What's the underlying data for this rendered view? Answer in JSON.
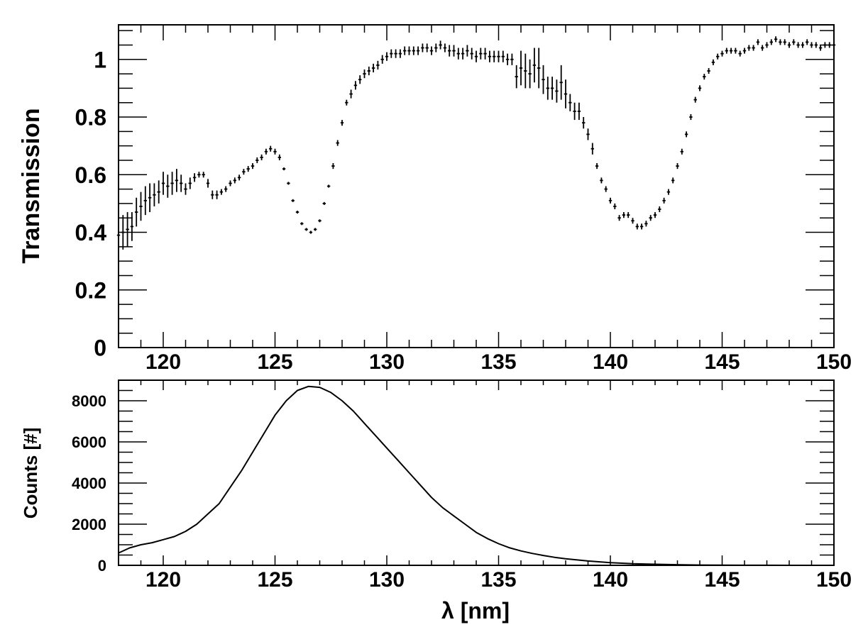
{
  "figure": {
    "xlabel": "λ [nm]",
    "xlim": [
      118,
      150
    ],
    "xticks": [
      120,
      125,
      130,
      135,
      140,
      145,
      150
    ]
  },
  "chart_data": [
    {
      "type": "scatter",
      "panel": "top",
      "xlabel": "",
      "ylabel": "Transmission",
      "xlim": [
        118,
        150
      ],
      "ylim": [
        0,
        1.12
      ],
      "yticks": [
        0,
        0.2,
        0.4,
        0.6,
        0.8,
        1
      ],
      "ytick_labels": [
        "0",
        "0.2",
        "0.4",
        "0.6",
        "0.8",
        "1"
      ],
      "error_bars": true,
      "points": [
        [
          118.0,
          0.39,
          0.07
        ],
        [
          118.2,
          0.4,
          0.06
        ],
        [
          118.4,
          0.41,
          0.06
        ],
        [
          118.6,
          0.42,
          0.05
        ],
        [
          118.8,
          0.47,
          0.05
        ],
        [
          119.0,
          0.49,
          0.05
        ],
        [
          119.2,
          0.51,
          0.05
        ],
        [
          119.4,
          0.52,
          0.05
        ],
        [
          119.6,
          0.53,
          0.04
        ],
        [
          119.8,
          0.54,
          0.04
        ],
        [
          120.0,
          0.57,
          0.04
        ],
        [
          120.2,
          0.56,
          0.04
        ],
        [
          120.4,
          0.57,
          0.04
        ],
        [
          120.6,
          0.58,
          0.04
        ],
        [
          120.8,
          0.57,
          0.03
        ],
        [
          121.0,
          0.55,
          0.02
        ],
        [
          121.2,
          0.57,
          0.02
        ],
        [
          121.4,
          0.59,
          0.015
        ],
        [
          121.6,
          0.6,
          0.01
        ],
        [
          121.8,
          0.6,
          0.01
        ],
        [
          122.0,
          0.57,
          0.015
        ],
        [
          122.2,
          0.53,
          0.015
        ],
        [
          122.4,
          0.53,
          0.015
        ],
        [
          122.6,
          0.54,
          0.01
        ],
        [
          122.8,
          0.55,
          0.01
        ],
        [
          123.0,
          0.57,
          0.01
        ],
        [
          123.2,
          0.58,
          0.01
        ],
        [
          123.4,
          0.59,
          0.01
        ],
        [
          123.6,
          0.61,
          0.01
        ],
        [
          123.8,
          0.62,
          0.01
        ],
        [
          124.0,
          0.63,
          0.01
        ],
        [
          124.2,
          0.65,
          0.01
        ],
        [
          124.4,
          0.66,
          0.01
        ],
        [
          124.6,
          0.68,
          0.01
        ],
        [
          124.8,
          0.69,
          0.01
        ],
        [
          125.0,
          0.68,
          0.01
        ],
        [
          125.2,
          0.66,
          0.01
        ],
        [
          125.4,
          0.62,
          0.005
        ],
        [
          125.6,
          0.57,
          0.005
        ],
        [
          125.8,
          0.51,
          0.005
        ],
        [
          126.0,
          0.47,
          0.005
        ],
        [
          126.2,
          0.43,
          0.005
        ],
        [
          126.4,
          0.41,
          0.005
        ],
        [
          126.6,
          0.4,
          0.005
        ],
        [
          126.8,
          0.41,
          0.005
        ],
        [
          127.0,
          0.44,
          0.005
        ],
        [
          127.2,
          0.5,
          0.005
        ],
        [
          127.4,
          0.56,
          0.005
        ],
        [
          127.6,
          0.63,
          0.01
        ],
        [
          127.8,
          0.71,
          0.01
        ],
        [
          128.0,
          0.78,
          0.01
        ],
        [
          128.2,
          0.85,
          0.01
        ],
        [
          128.4,
          0.88,
          0.015
        ],
        [
          128.6,
          0.91,
          0.015
        ],
        [
          128.8,
          0.93,
          0.015
        ],
        [
          129.0,
          0.95,
          0.015
        ],
        [
          129.2,
          0.96,
          0.015
        ],
        [
          129.4,
          0.97,
          0.015
        ],
        [
          129.6,
          0.98,
          0.015
        ],
        [
          129.8,
          1.0,
          0.015
        ],
        [
          130.0,
          1.01,
          0.015
        ],
        [
          130.2,
          1.02,
          0.015
        ],
        [
          130.4,
          1.02,
          0.015
        ],
        [
          130.6,
          1.02,
          0.015
        ],
        [
          130.8,
          1.03,
          0.015
        ],
        [
          131.0,
          1.03,
          0.015
        ],
        [
          131.2,
          1.03,
          0.015
        ],
        [
          131.4,
          1.03,
          0.015
        ],
        [
          131.6,
          1.04,
          0.015
        ],
        [
          131.8,
          1.04,
          0.015
        ],
        [
          132.0,
          1.03,
          0.015
        ],
        [
          132.2,
          1.04,
          0.015
        ],
        [
          132.4,
          1.05,
          0.015
        ],
        [
          132.6,
          1.04,
          0.015
        ],
        [
          132.8,
          1.03,
          0.02
        ],
        [
          133.0,
          1.03,
          0.02
        ],
        [
          133.2,
          1.02,
          0.02
        ],
        [
          133.4,
          1.02,
          0.02
        ],
        [
          133.6,
          1.03,
          0.02
        ],
        [
          133.8,
          1.02,
          0.02
        ],
        [
          134.0,
          1.01,
          0.02
        ],
        [
          134.2,
          1.02,
          0.02
        ],
        [
          134.4,
          1.02,
          0.02
        ],
        [
          134.6,
          1.01,
          0.02
        ],
        [
          134.8,
          1.01,
          0.02
        ],
        [
          135.0,
          1.01,
          0.02
        ],
        [
          135.2,
          1.01,
          0.02
        ],
        [
          135.4,
          1.0,
          0.02
        ],
        [
          135.6,
          1.0,
          0.02
        ],
        [
          135.8,
          0.94,
          0.04
        ],
        [
          136.0,
          0.97,
          0.06
        ],
        [
          136.2,
          0.96,
          0.06
        ],
        [
          136.4,
          0.95,
          0.05
        ],
        [
          136.6,
          0.98,
          0.06
        ],
        [
          136.8,
          0.97,
          0.07
        ],
        [
          137.0,
          0.93,
          0.05
        ],
        [
          137.2,
          0.9,
          0.04
        ],
        [
          137.4,
          0.9,
          0.04
        ],
        [
          137.6,
          0.89,
          0.04
        ],
        [
          137.8,
          0.92,
          0.06
        ],
        [
          138.0,
          0.88,
          0.05
        ],
        [
          138.2,
          0.85,
          0.03
        ],
        [
          138.4,
          0.82,
          0.03
        ],
        [
          138.6,
          0.82,
          0.03
        ],
        [
          138.8,
          0.78,
          0.02
        ],
        [
          139.0,
          0.74,
          0.02
        ],
        [
          139.2,
          0.69,
          0.02
        ],
        [
          139.4,
          0.63,
          0.01
        ],
        [
          139.6,
          0.58,
          0.01
        ],
        [
          139.8,
          0.55,
          0.01
        ],
        [
          140.0,
          0.51,
          0.01
        ],
        [
          140.2,
          0.49,
          0.01
        ],
        [
          140.4,
          0.45,
          0.01
        ],
        [
          140.6,
          0.46,
          0.01
        ],
        [
          140.8,
          0.46,
          0.01
        ],
        [
          141.0,
          0.44,
          0.01
        ],
        [
          141.2,
          0.42,
          0.01
        ],
        [
          141.4,
          0.42,
          0.01
        ],
        [
          141.6,
          0.43,
          0.01
        ],
        [
          141.8,
          0.45,
          0.01
        ],
        [
          142.0,
          0.46,
          0.01
        ],
        [
          142.2,
          0.48,
          0.01
        ],
        [
          142.4,
          0.51,
          0.01
        ],
        [
          142.6,
          0.54,
          0.01
        ],
        [
          142.8,
          0.58,
          0.01
        ],
        [
          143.0,
          0.63,
          0.01
        ],
        [
          143.2,
          0.68,
          0.01
        ],
        [
          143.4,
          0.74,
          0.01
        ],
        [
          143.6,
          0.8,
          0.01
        ],
        [
          143.8,
          0.86,
          0.01
        ],
        [
          144.0,
          0.9,
          0.01
        ],
        [
          144.2,
          0.94,
          0.01
        ],
        [
          144.4,
          0.96,
          0.01
        ],
        [
          144.6,
          0.99,
          0.01
        ],
        [
          144.8,
          1.01,
          0.01
        ],
        [
          145.0,
          1.02,
          0.01
        ],
        [
          145.2,
          1.03,
          0.01
        ],
        [
          145.4,
          1.03,
          0.01
        ],
        [
          145.6,
          1.03,
          0.01
        ],
        [
          145.8,
          1.02,
          0.01
        ],
        [
          146.0,
          1.03,
          0.01
        ],
        [
          146.2,
          1.04,
          0.01
        ],
        [
          146.4,
          1.04,
          0.01
        ],
        [
          146.6,
          1.06,
          0.01
        ],
        [
          146.8,
          1.04,
          0.01
        ],
        [
          147.0,
          1.05,
          0.01
        ],
        [
          147.2,
          1.06,
          0.01
        ],
        [
          147.4,
          1.07,
          0.01
        ],
        [
          147.6,
          1.06,
          0.01
        ],
        [
          147.8,
          1.06,
          0.01
        ],
        [
          148.0,
          1.05,
          0.01
        ],
        [
          148.2,
          1.06,
          0.01
        ],
        [
          148.4,
          1.05,
          0.01
        ],
        [
          148.6,
          1.05,
          0.01
        ],
        [
          148.8,
          1.06,
          0.01
        ],
        [
          149.0,
          1.05,
          0.01
        ],
        [
          149.2,
          1.05,
          0.01
        ],
        [
          149.4,
          1.04,
          0.01
        ],
        [
          149.6,
          1.05,
          0.01
        ],
        [
          149.8,
          1.05,
          0.01
        ],
        [
          150.0,
          1.05,
          0.01
        ]
      ]
    },
    {
      "type": "line",
      "panel": "bottom",
      "xlabel": "λ [nm]",
      "ylabel": "Counts [#]",
      "xlim": [
        118,
        150
      ],
      "ylim": [
        0,
        9000
      ],
      "yticks": [
        0,
        2000,
        4000,
        6000,
        8000
      ],
      "ytick_labels": [
        "0",
        "2000",
        "4000",
        "6000",
        "8000"
      ],
      "x": [
        118,
        118.5,
        119,
        119.5,
        120,
        120.5,
        121,
        121.5,
        122,
        122.5,
        123,
        123.5,
        124,
        124.5,
        125,
        125.5,
        126,
        126.5,
        127,
        127.5,
        128,
        128.5,
        129,
        129.5,
        130,
        130.5,
        131,
        131.5,
        132,
        132.5,
        133,
        133.5,
        134,
        134.5,
        135,
        135.5,
        136,
        136.5,
        137,
        137.5,
        138,
        139,
        140,
        141,
        142,
        143,
        144,
        145,
        146,
        147,
        148,
        149,
        150
      ],
      "y": [
        600,
        850,
        1000,
        1100,
        1250,
        1400,
        1650,
        2000,
        2500,
        3000,
        3800,
        4600,
        5500,
        6400,
        7300,
        8000,
        8500,
        8700,
        8650,
        8400,
        8000,
        7500,
        6900,
        6300,
        5700,
        5100,
        4500,
        3900,
        3300,
        2800,
        2400,
        2000,
        1600,
        1300,
        1050,
        850,
        700,
        580,
        480,
        390,
        320,
        210,
        130,
        80,
        50,
        30,
        15,
        8,
        4,
        2,
        1,
        0,
        0
      ]
    }
  ]
}
